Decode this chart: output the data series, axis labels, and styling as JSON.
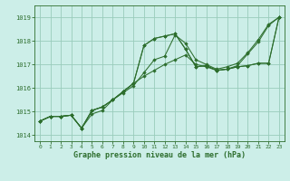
{
  "xlabel": "Graphe pression niveau de la mer (hPa)",
  "bg_color": "#cceee8",
  "grid_color": "#99ccbb",
  "line_color": "#2d6e2d",
  "ylim": [
    1013.75,
    1019.5
  ],
  "xlim": [
    -0.5,
    23.5
  ],
  "yticks": [
    1014,
    1015,
    1016,
    1017,
    1018,
    1019
  ],
  "xticks": [
    0,
    1,
    2,
    3,
    4,
    5,
    6,
    7,
    8,
    9,
    10,
    11,
    12,
    13,
    14,
    15,
    16,
    17,
    18,
    19,
    20,
    21,
    22,
    23
  ],
  "s1_x": [
    0,
    1,
    2,
    3,
    4,
    5,
    6,
    7,
    8,
    9,
    10,
    11,
    12,
    13,
    14,
    15,
    16,
    17,
    18,
    19,
    20,
    21,
    22,
    23
  ],
  "s1_y": [
    1014.6,
    1014.8,
    1014.8,
    1014.85,
    1014.3,
    1014.9,
    1015.05,
    1015.5,
    1015.8,
    1016.1,
    1016.65,
    1017.2,
    1017.35,
    1018.25,
    1017.9,
    1017.2,
    1017.0,
    1016.8,
    1016.9,
    1017.05,
    1017.5,
    1018.05,
    1018.7,
    1019.0
  ],
  "s2_x": [
    0,
    1,
    2,
    3,
    4,
    5,
    6,
    7,
    8,
    9,
    10,
    11,
    12,
    13,
    14,
    15,
    16,
    17,
    18,
    19,
    20,
    21,
    22,
    23
  ],
  "s2_y": [
    1014.6,
    1014.8,
    1014.8,
    1014.85,
    1014.3,
    1015.05,
    1015.2,
    1015.5,
    1015.85,
    1016.2,
    1017.8,
    1018.1,
    1018.2,
    1018.3,
    1017.65,
    1016.9,
    1016.95,
    1016.75,
    1016.8,
    1016.9,
    1016.95,
    1017.05,
    1017.05,
    1019.0
  ],
  "s3_x": [
    0,
    1,
    2,
    3,
    4,
    5,
    6,
    7,
    8,
    9,
    10,
    11,
    12,
    13,
    14,
    15,
    16,
    17,
    18,
    19,
    20,
    21,
    22,
    23
  ],
  "s3_y": [
    1014.6,
    1014.8,
    1014.8,
    1014.85,
    1014.3,
    1015.05,
    1015.2,
    1015.5,
    1015.85,
    1016.2,
    1017.8,
    1018.1,
    1018.2,
    1018.3,
    1017.65,
    1016.9,
    1016.95,
    1016.75,
    1016.8,
    1016.9,
    1016.95,
    1017.05,
    1017.05,
    1019.0
  ],
  "s4_x": [
    0,
    1,
    2,
    3,
    4,
    5,
    6,
    7,
    8,
    9,
    10,
    11,
    12,
    13,
    14,
    15,
    16,
    17,
    18,
    19,
    20,
    21,
    22,
    23
  ],
  "s4_y": [
    1014.6,
    1014.8,
    1014.8,
    1014.85,
    1014.3,
    1015.05,
    1015.2,
    1015.5,
    1015.85,
    1016.2,
    1016.5,
    1016.75,
    1017.0,
    1017.2,
    1017.4,
    1017.0,
    1016.9,
    1016.75,
    1016.8,
    1016.95,
    1017.45,
    1017.95,
    1018.65,
    1019.0
  ]
}
